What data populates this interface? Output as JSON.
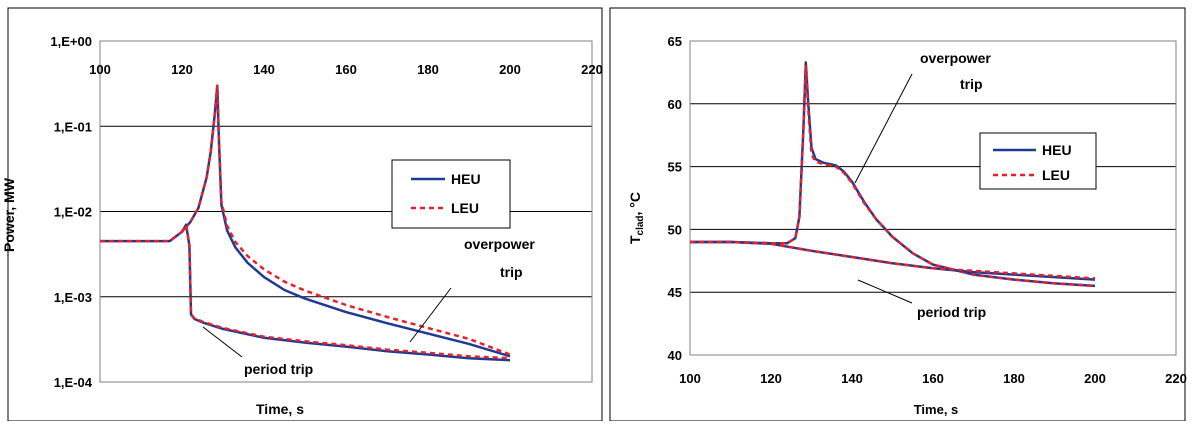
{
  "colors": {
    "heu": "#1f3a93",
    "leu": "#e8202a",
    "grid": "#000000",
    "frame": "#000000"
  },
  "chart_data": [
    {
      "type": "line",
      "title": "",
      "xlabel": "Time, s",
      "ylabel": "Power, MW",
      "xlim": [
        100,
        220
      ],
      "x_ticks": [
        "100",
        "120",
        "140",
        "160",
        "180",
        "200",
        "220"
      ],
      "ylim": [
        0.0001,
        1
      ],
      "y_scale": "log",
      "y_ticks": [
        "1,E-04",
        "1,E-03",
        "1,E-02",
        "1,E-01",
        "1,E+00"
      ],
      "x_axis_position": "top",
      "grid": "horizontal",
      "legend": {
        "placement": "right",
        "entries": [
          "HEU",
          "LEU"
        ]
      },
      "annotations": [
        {
          "lines": [
            "overpower",
            "trip"
          ]
        },
        {
          "lines": [
            "period trip"
          ]
        }
      ],
      "series": [
        {
          "name": "HEU",
          "style": "solid",
          "trip": "overpower trip",
          "x": [
            100,
            110,
            117,
            120,
            122,
            124,
            126,
            127,
            128,
            128.6,
            129,
            129.6,
            131,
            133,
            136,
            140,
            145,
            150,
            160,
            170,
            180,
            190,
            200
          ],
          "y": [
            0.0045,
            0.0045,
            0.0045,
            0.0058,
            0.0075,
            0.011,
            0.025,
            0.05,
            0.14,
            0.3,
            0.07,
            0.012,
            0.006,
            0.0038,
            0.0025,
            0.0017,
            0.0012,
            0.00095,
            0.00066,
            0.00049,
            0.00037,
            0.00028,
            0.0002
          ]
        },
        {
          "name": "LEU",
          "style": "dashed",
          "trip": "overpower trip",
          "x": [
            100,
            110,
            117,
            120,
            122,
            124,
            126,
            127,
            128,
            128.6,
            129,
            129.6,
            131,
            133,
            136,
            140,
            145,
            150,
            160,
            170,
            180,
            190,
            200
          ],
          "y": [
            0.0045,
            0.0045,
            0.0045,
            0.0058,
            0.0075,
            0.011,
            0.025,
            0.05,
            0.14,
            0.3,
            0.07,
            0.013,
            0.0068,
            0.0044,
            0.003,
            0.0021,
            0.0015,
            0.00118,
            0.0008,
            0.00058,
            0.00043,
            0.00032,
            0.00021
          ]
        },
        {
          "name": "HEU",
          "style": "solid",
          "trip": "period trip",
          "x": [
            120,
            121,
            121.8,
            122.2,
            123,
            125,
            130,
            140,
            150,
            160,
            170,
            180,
            190,
            200
          ],
          "y": [
            0.0058,
            0.007,
            0.004,
            0.00062,
            0.00055,
            0.0005,
            0.00042,
            0.00033,
            0.00029,
            0.00026,
            0.00023,
            0.00021,
            0.00019,
            0.00018
          ]
        },
        {
          "name": "LEU",
          "style": "dashed",
          "trip": "period trip",
          "x": [
            120,
            121,
            121.8,
            122.2,
            123,
            125,
            130,
            140,
            150,
            160,
            170,
            180,
            190,
            200
          ],
          "y": [
            0.0058,
            0.007,
            0.004,
            0.00063,
            0.00056,
            0.00051,
            0.00043,
            0.00034,
            0.0003,
            0.00027,
            0.00024,
            0.00022,
            0.0002,
            0.00019
          ]
        }
      ]
    },
    {
      "type": "line",
      "title": "",
      "xlabel": "Time, s",
      "ylabel": "T",
      "ylabel_subscript": "clad",
      "ylabel_suffix": ", °C",
      "xlim": [
        100,
        220
      ],
      "x_ticks": [
        "100",
        "120",
        "140",
        "160",
        "180",
        "200",
        "220"
      ],
      "ylim": [
        40,
        65
      ],
      "y_ticks": [
        "40",
        "45",
        "50",
        "55",
        "60",
        "65"
      ],
      "x_axis_position": "bottom",
      "grid": "horizontal",
      "legend": {
        "placement": "right",
        "entries": [
          "HEU",
          "LEU"
        ]
      },
      "annotations": [
        {
          "lines": [
            "overpower",
            "trip"
          ]
        },
        {
          "lines": [
            "period trip"
          ]
        }
      ],
      "series": [
        {
          "name": "HEU",
          "style": "solid",
          "trip": "overpower trip",
          "x": [
            100,
            110,
            120,
            124,
            126,
            127,
            128,
            128.6,
            129.2,
            130,
            131,
            133,
            136,
            138,
            140,
            143,
            146,
            150,
            155,
            160,
            170,
            180,
            190,
            200
          ],
          "y": [
            49.0,
            49.0,
            48.9,
            48.9,
            49.3,
            51,
            58,
            63.3,
            60,
            56.5,
            55.6,
            55.3,
            55.1,
            54.6,
            53.8,
            52.2,
            50.8,
            49.4,
            48.1,
            47.2,
            46.4,
            46.0,
            45.7,
            45.5
          ]
        },
        {
          "name": "LEU",
          "style": "dashed",
          "trip": "overpower trip",
          "x": [
            100,
            110,
            120,
            124,
            126,
            127,
            128,
            128.6,
            129.2,
            130,
            131,
            133,
            136,
            138,
            140,
            143,
            146,
            150,
            155,
            160,
            170,
            180,
            190,
            200
          ],
          "y": [
            49.0,
            49.0,
            48.9,
            48.9,
            49.3,
            51,
            58,
            63.0,
            59.5,
            56,
            55.4,
            55.2,
            55.0,
            54.5,
            53.7,
            52.1,
            50.8,
            49.4,
            48.1,
            47.2,
            46.4,
            46.0,
            45.7,
            45.5
          ]
        },
        {
          "name": "HEU",
          "style": "solid",
          "trip": "period trip",
          "x": [
            100,
            110,
            120,
            130,
            140,
            150,
            160,
            170,
            180,
            190,
            200
          ],
          "y": [
            49.0,
            49.0,
            48.85,
            48.3,
            47.8,
            47.3,
            46.9,
            46.6,
            46.4,
            46.2,
            46.0
          ]
        },
        {
          "name": "LEU",
          "style": "dashed",
          "trip": "period trip",
          "x": [
            100,
            110,
            120,
            130,
            140,
            150,
            160,
            170,
            180,
            190,
            200
          ],
          "y": [
            49.0,
            49.0,
            48.85,
            48.3,
            47.8,
            47.3,
            46.9,
            46.7,
            46.5,
            46.3,
            46.1
          ]
        }
      ]
    }
  ]
}
